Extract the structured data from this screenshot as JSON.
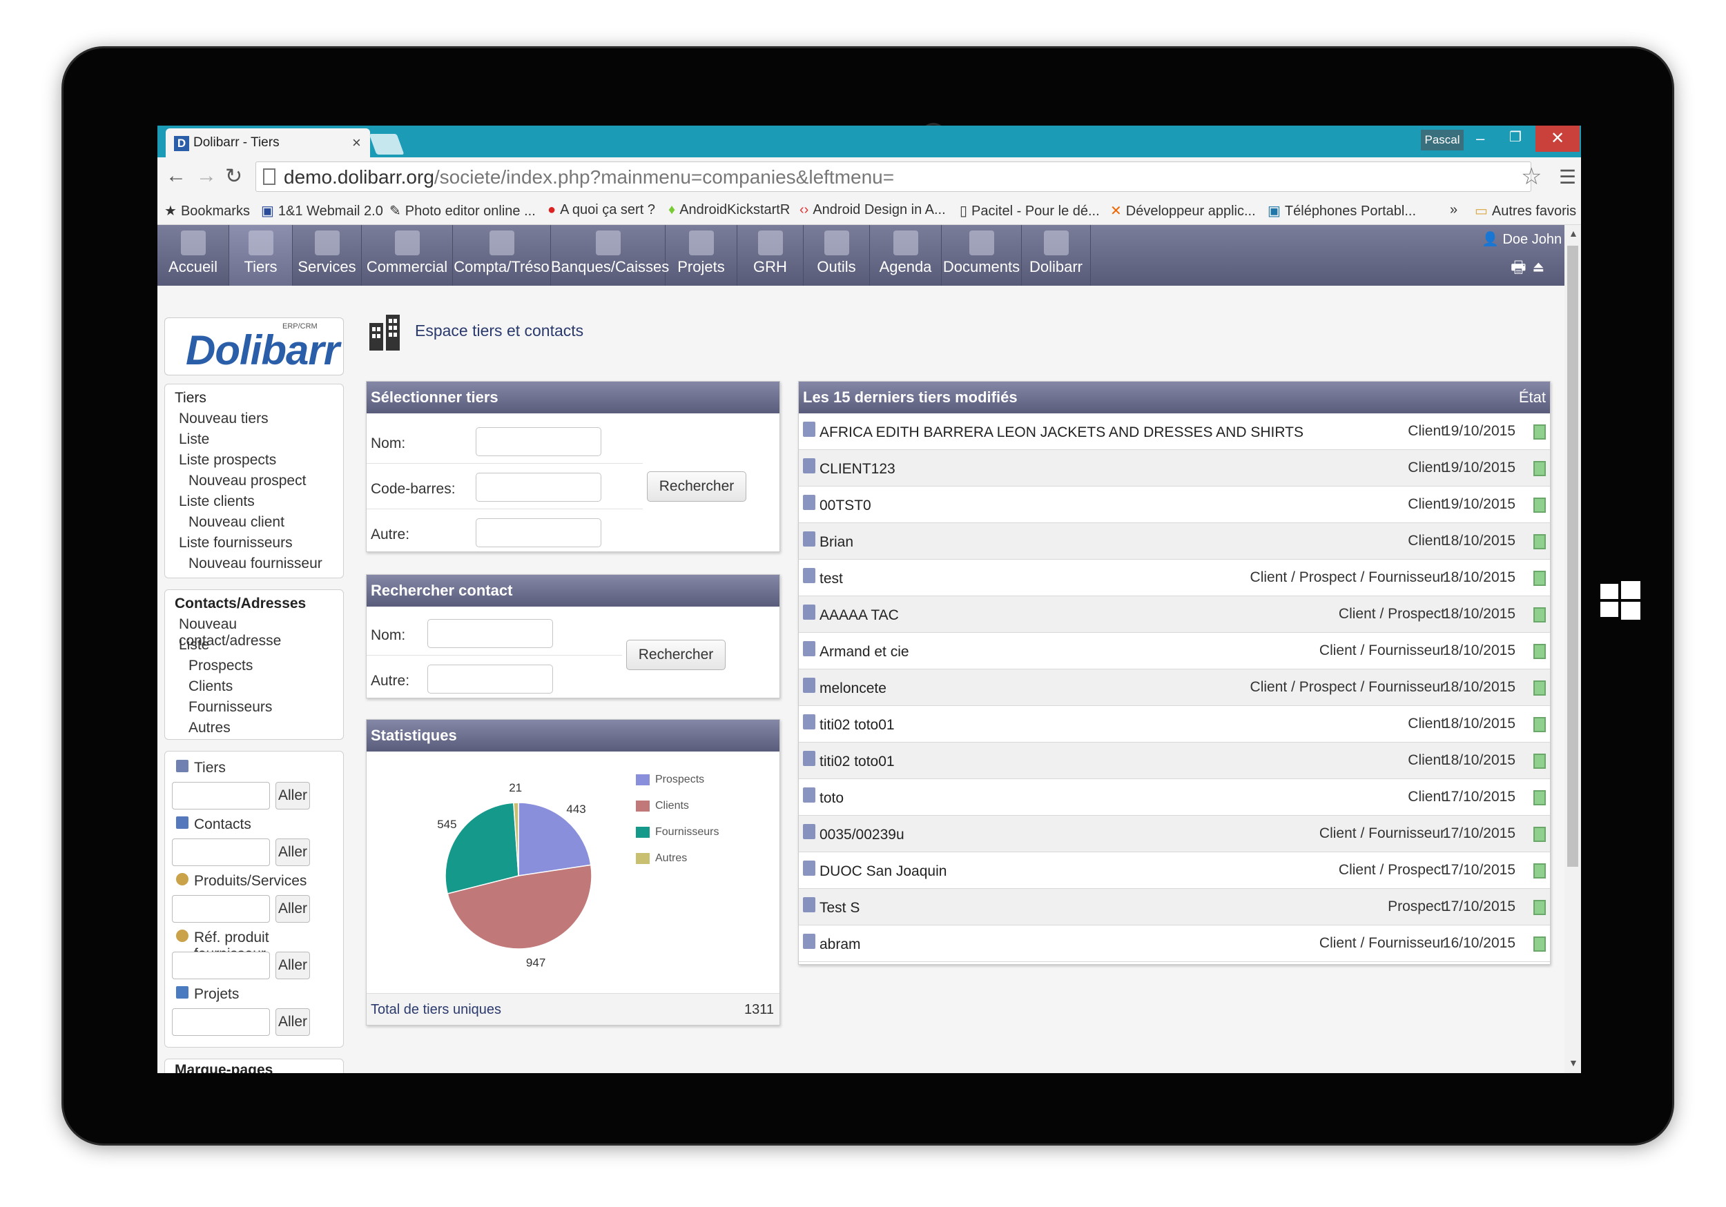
{
  "browser": {
    "tab_title": "Dolibarr - Tiers",
    "tab_icon_letter": "D",
    "profile_name": "Pascal",
    "url_host": "demo.dolibarr.org",
    "url_path": "/societe/index.php?mainmenu=companies&leftmenu=",
    "bookmarks": [
      "Bookmarks",
      "1&1 Webmail 2.0",
      "Photo editor online ...",
      "A quoi ça sert ?",
      "AndroidKickstartR",
      "Android Design in A...",
      "Pacitel - Pour le dé...",
      "Développeur applic...",
      "Téléphones Portabl...",
      "»",
      "Autres favoris"
    ]
  },
  "topmenu": {
    "items": [
      "Accueil",
      "Tiers",
      "Services",
      "Commercial",
      "Compta/Tréso",
      "Banques/Caisses",
      "Projets",
      "GRH",
      "Outils",
      "Agenda",
      "Documents",
      "Dolibarr"
    ],
    "active": "Tiers",
    "user": "Doe John"
  },
  "logo": {
    "text": "Dolibarr",
    "sub": "ERP/CRM"
  },
  "leftmenu": {
    "tiers": {
      "title": "Tiers",
      "items": [
        "Nouveau tiers",
        "Liste",
        "Liste prospects",
        "Nouveau prospect",
        "Liste clients",
        "Nouveau client",
        "Liste fournisseurs",
        "Nouveau fournisseur"
      ]
    },
    "contacts": {
      "title": "Contacts/Adresses",
      "items": [
        "Nouveau contact/adresse",
        "Liste",
        "Prospects",
        "Clients",
        "Fournisseurs",
        "Autres"
      ]
    },
    "quicksearch": {
      "button": "Aller",
      "items": [
        "Tiers",
        "Contacts",
        "Produits/Services",
        "Réf. produit fournisseur",
        "Projets"
      ]
    },
    "next_box_title": "Marque-pages"
  },
  "page": {
    "title": "Espace tiers et contacts"
  },
  "select_tiers": {
    "title": "Sélectionner tiers",
    "labels": [
      "Nom:",
      "Code-barres:",
      "Autre:"
    ],
    "button": "Rechercher"
  },
  "search_contact": {
    "title": "Rechercher contact",
    "labels": [
      "Nom:",
      "Autre:"
    ],
    "button": "Rechercher"
  },
  "stats": {
    "title": "Statistiques",
    "total_label": "Total de tiers uniques",
    "total_value": "1311",
    "slice_labels": [
      "443",
      "947",
      "545",
      "21"
    ]
  },
  "chart_data": {
    "type": "pie",
    "categories": [
      "Prospects",
      "Clients",
      "Fournisseurs",
      "Autres"
    ],
    "values": [
      443,
      947,
      545,
      21
    ],
    "colors": [
      "#8a8fdc",
      "#c07878",
      "#14998a",
      "#c8c070"
    ],
    "legend": "right"
  },
  "latest": {
    "title": "Les 15 derniers tiers modifiés",
    "state_header": "État",
    "rows": [
      {
        "name": "AFRICA EDITH BARRERA LEON JACKETS AND DRESSES AND SHIRTS",
        "type": "Client",
        "date": "19/10/2015"
      },
      {
        "name": "CLIENT123",
        "type": "Client",
        "date": "19/10/2015"
      },
      {
        "name": "00TST0",
        "type": "Client",
        "date": "19/10/2015"
      },
      {
        "name": "Brian",
        "type": "Client",
        "date": "18/10/2015"
      },
      {
        "name": "test",
        "type": "Client / Prospect / Fournisseur",
        "date": "18/10/2015"
      },
      {
        "name": "AAAAA TAC",
        "type": "Client / Prospect",
        "date": "18/10/2015"
      },
      {
        "name": "Armand et cie",
        "type": "Client / Fournisseur",
        "date": "18/10/2015"
      },
      {
        "name": "meloncete",
        "type": "Client / Prospect / Fournisseur",
        "date": "18/10/2015"
      },
      {
        "name": "titi02 toto01",
        "type": "Client",
        "date": "18/10/2015"
      },
      {
        "name": "titi02 toto01",
        "type": "Client",
        "date": "18/10/2015"
      },
      {
        "name": "toto",
        "type": "Client",
        "date": "17/10/2015"
      },
      {
        "name": "0035/00239u",
        "type": "Client / Fournisseur",
        "date": "17/10/2015"
      },
      {
        "name": "DUOC San Joaquin",
        "type": "Client / Prospect",
        "date": "17/10/2015"
      },
      {
        "name": "Test S",
        "type": "Prospect",
        "date": "17/10/2015"
      },
      {
        "name": "abram",
        "type": "Client / Fournisseur",
        "date": "16/10/2015"
      }
    ]
  }
}
